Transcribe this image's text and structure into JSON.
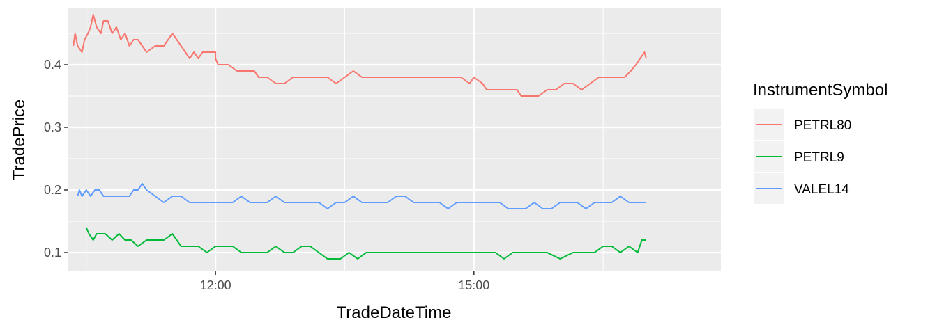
{
  "chart_data": {
    "type": "line",
    "xlabel": "TradeDateTime",
    "ylabel": "TradePrice",
    "x_tick_labels": [
      "12:00",
      "15:00"
    ],
    "x_ticks_minutes": [
      720,
      900
    ],
    "y_tick_labels": [
      "0.1",
      "0.2",
      "0.3",
      "0.4"
    ],
    "y_ticks": [
      0.1,
      0.2,
      0.3,
      0.4
    ],
    "xlim_minutes": [
      617,
      1072
    ],
    "ylim": [
      0.07,
      0.49
    ],
    "grid": true,
    "legend": {
      "title": "InstrumentSymbol",
      "position": "right"
    },
    "series": [
      {
        "name": "PETRL80",
        "color": "#F8766D",
        "points": [
          [
            10.35,
            0.43
          ],
          [
            10.37,
            0.45
          ],
          [
            10.4,
            0.43
          ],
          [
            10.45,
            0.42
          ],
          [
            10.48,
            0.44
          ],
          [
            10.52,
            0.45
          ],
          [
            10.55,
            0.46
          ],
          [
            10.58,
            0.48
          ],
          [
            10.62,
            0.46
          ],
          [
            10.67,
            0.45
          ],
          [
            10.7,
            0.47
          ],
          [
            10.75,
            0.47
          ],
          [
            10.8,
            0.45
          ],
          [
            10.85,
            0.46
          ],
          [
            10.9,
            0.44
          ],
          [
            10.95,
            0.45
          ],
          [
            11.0,
            0.43
          ],
          [
            11.05,
            0.44
          ],
          [
            11.1,
            0.44
          ],
          [
            11.15,
            0.43
          ],
          [
            11.2,
            0.42
          ],
          [
            11.3,
            0.43
          ],
          [
            11.4,
            0.43
          ],
          [
            11.5,
            0.45
          ],
          [
            11.55,
            0.44
          ],
          [
            11.6,
            0.43
          ],
          [
            11.65,
            0.42
          ],
          [
            11.7,
            0.41
          ],
          [
            11.75,
            0.42
          ],
          [
            11.8,
            0.41
          ],
          [
            11.85,
            0.42
          ],
          [
            11.92,
            0.42
          ],
          [
            12.0,
            0.42
          ],
          [
            12.0,
            0.41
          ],
          [
            12.03,
            0.4
          ],
          [
            12.15,
            0.4
          ],
          [
            12.25,
            0.39
          ],
          [
            12.35,
            0.39
          ],
          [
            12.45,
            0.39
          ],
          [
            12.5,
            0.38
          ],
          [
            12.6,
            0.38
          ],
          [
            12.7,
            0.37
          ],
          [
            12.8,
            0.37
          ],
          [
            12.9,
            0.38
          ],
          [
            13.0,
            0.38
          ],
          [
            13.15,
            0.38
          ],
          [
            13.3,
            0.38
          ],
          [
            13.4,
            0.37
          ],
          [
            13.5,
            0.38
          ],
          [
            13.6,
            0.39
          ],
          [
            13.7,
            0.38
          ],
          [
            13.8,
            0.38
          ],
          [
            13.9,
            0.38
          ],
          [
            14.0,
            0.38
          ],
          [
            14.1,
            0.38
          ],
          [
            14.2,
            0.38
          ],
          [
            14.4,
            0.38
          ],
          [
            14.55,
            0.38
          ],
          [
            14.7,
            0.38
          ],
          [
            14.85,
            0.38
          ],
          [
            14.95,
            0.37
          ],
          [
            15.0,
            0.38
          ],
          [
            15.1,
            0.37
          ],
          [
            15.15,
            0.36
          ],
          [
            15.3,
            0.36
          ],
          [
            15.4,
            0.36
          ],
          [
            15.5,
            0.36
          ],
          [
            15.55,
            0.35
          ],
          [
            15.65,
            0.35
          ],
          [
            15.75,
            0.35
          ],
          [
            15.85,
            0.36
          ],
          [
            15.95,
            0.36
          ],
          [
            16.05,
            0.37
          ],
          [
            16.15,
            0.37
          ],
          [
            16.25,
            0.36
          ],
          [
            16.35,
            0.37
          ],
          [
            16.45,
            0.38
          ],
          [
            16.55,
            0.38
          ],
          [
            16.65,
            0.38
          ],
          [
            16.75,
            0.38
          ],
          [
            16.82,
            0.39
          ],
          [
            16.88,
            0.4
          ],
          [
            16.93,
            0.41
          ],
          [
            16.98,
            0.42
          ],
          [
            17.0,
            0.41
          ]
        ]
      },
      {
        "name": "PETRL9",
        "color": "#00BA38",
        "points": [
          [
            10.5,
            0.14
          ],
          [
            10.53,
            0.13
          ],
          [
            10.58,
            0.12
          ],
          [
            10.62,
            0.13
          ],
          [
            10.72,
            0.13
          ],
          [
            10.8,
            0.12
          ],
          [
            10.88,
            0.13
          ],
          [
            10.95,
            0.12
          ],
          [
            11.02,
            0.12
          ],
          [
            11.1,
            0.11
          ],
          [
            11.2,
            0.12
          ],
          [
            11.3,
            0.12
          ],
          [
            11.4,
            0.12
          ],
          [
            11.5,
            0.13
          ],
          [
            11.6,
            0.11
          ],
          [
            11.7,
            0.11
          ],
          [
            11.8,
            0.11
          ],
          [
            11.9,
            0.1
          ],
          [
            12.0,
            0.11
          ],
          [
            12.1,
            0.11
          ],
          [
            12.2,
            0.11
          ],
          [
            12.3,
            0.1
          ],
          [
            12.4,
            0.1
          ],
          [
            12.5,
            0.1
          ],
          [
            12.6,
            0.1
          ],
          [
            12.7,
            0.11
          ],
          [
            12.8,
            0.1
          ],
          [
            12.9,
            0.1
          ],
          [
            13.0,
            0.11
          ],
          [
            13.1,
            0.11
          ],
          [
            13.2,
            0.1
          ],
          [
            13.3,
            0.09
          ],
          [
            13.45,
            0.09
          ],
          [
            13.55,
            0.1
          ],
          [
            13.65,
            0.09
          ],
          [
            13.75,
            0.1
          ],
          [
            13.85,
            0.1
          ],
          [
            13.95,
            0.1
          ],
          [
            14.05,
            0.1
          ],
          [
            14.15,
            0.1
          ],
          [
            14.25,
            0.1
          ],
          [
            14.35,
            0.1
          ],
          [
            14.45,
            0.1
          ],
          [
            14.55,
            0.1
          ],
          [
            14.65,
            0.1
          ],
          [
            14.75,
            0.1
          ],
          [
            14.85,
            0.1
          ],
          [
            14.95,
            0.1
          ],
          [
            15.05,
            0.1
          ],
          [
            15.15,
            0.1
          ],
          [
            15.25,
            0.1
          ],
          [
            15.35,
            0.09
          ],
          [
            15.45,
            0.1
          ],
          [
            15.55,
            0.1
          ],
          [
            15.65,
            0.1
          ],
          [
            15.75,
            0.1
          ],
          [
            15.85,
            0.1
          ],
          [
            16.0,
            0.09
          ],
          [
            16.15,
            0.1
          ],
          [
            16.3,
            0.1
          ],
          [
            16.4,
            0.1
          ],
          [
            16.5,
            0.11
          ],
          [
            16.6,
            0.11
          ],
          [
            16.7,
            0.1
          ],
          [
            16.8,
            0.11
          ],
          [
            16.9,
            0.1
          ],
          [
            16.95,
            0.12
          ],
          [
            17.0,
            0.12
          ]
        ]
      },
      {
        "name": "VALEL14",
        "color": "#619CFF",
        "points": [
          [
            10.4,
            0.19
          ],
          [
            10.42,
            0.2
          ],
          [
            10.45,
            0.19
          ],
          [
            10.5,
            0.2
          ],
          [
            10.55,
            0.19
          ],
          [
            10.6,
            0.2
          ],
          [
            10.65,
            0.2
          ],
          [
            10.7,
            0.19
          ],
          [
            10.8,
            0.19
          ],
          [
            10.9,
            0.19
          ],
          [
            11.0,
            0.19
          ],
          [
            11.05,
            0.2
          ],
          [
            11.1,
            0.2
          ],
          [
            11.15,
            0.21
          ],
          [
            11.2,
            0.2
          ],
          [
            11.3,
            0.19
          ],
          [
            11.4,
            0.18
          ],
          [
            11.5,
            0.19
          ],
          [
            11.6,
            0.19
          ],
          [
            11.7,
            0.18
          ],
          [
            11.8,
            0.18
          ],
          [
            11.9,
            0.18
          ],
          [
            12.0,
            0.18
          ],
          [
            12.1,
            0.18
          ],
          [
            12.2,
            0.18
          ],
          [
            12.3,
            0.19
          ],
          [
            12.4,
            0.18
          ],
          [
            12.5,
            0.18
          ],
          [
            12.6,
            0.18
          ],
          [
            12.7,
            0.19
          ],
          [
            12.8,
            0.18
          ],
          [
            12.9,
            0.18
          ],
          [
            13.0,
            0.18
          ],
          [
            13.1,
            0.18
          ],
          [
            13.2,
            0.18
          ],
          [
            13.3,
            0.17
          ],
          [
            13.4,
            0.18
          ],
          [
            13.5,
            0.18
          ],
          [
            13.6,
            0.19
          ],
          [
            13.7,
            0.18
          ],
          [
            13.8,
            0.18
          ],
          [
            13.9,
            0.18
          ],
          [
            14.0,
            0.18
          ],
          [
            14.1,
            0.19
          ],
          [
            14.2,
            0.19
          ],
          [
            14.3,
            0.18
          ],
          [
            14.4,
            0.18
          ],
          [
            14.5,
            0.18
          ],
          [
            14.6,
            0.18
          ],
          [
            14.7,
            0.17
          ],
          [
            14.8,
            0.18
          ],
          [
            14.9,
            0.18
          ],
          [
            15.0,
            0.18
          ],
          [
            15.1,
            0.18
          ],
          [
            15.2,
            0.18
          ],
          [
            15.3,
            0.18
          ],
          [
            15.4,
            0.17
          ],
          [
            15.5,
            0.17
          ],
          [
            15.6,
            0.17
          ],
          [
            15.7,
            0.18
          ],
          [
            15.8,
            0.17
          ],
          [
            15.9,
            0.17
          ],
          [
            16.0,
            0.18
          ],
          [
            16.1,
            0.18
          ],
          [
            16.2,
            0.18
          ],
          [
            16.3,
            0.17
          ],
          [
            16.4,
            0.18
          ],
          [
            16.5,
            0.18
          ],
          [
            16.6,
            0.18
          ],
          [
            16.7,
            0.19
          ],
          [
            16.8,
            0.18
          ],
          [
            16.9,
            0.18
          ],
          [
            17.0,
            0.18
          ]
        ]
      }
    ]
  }
}
